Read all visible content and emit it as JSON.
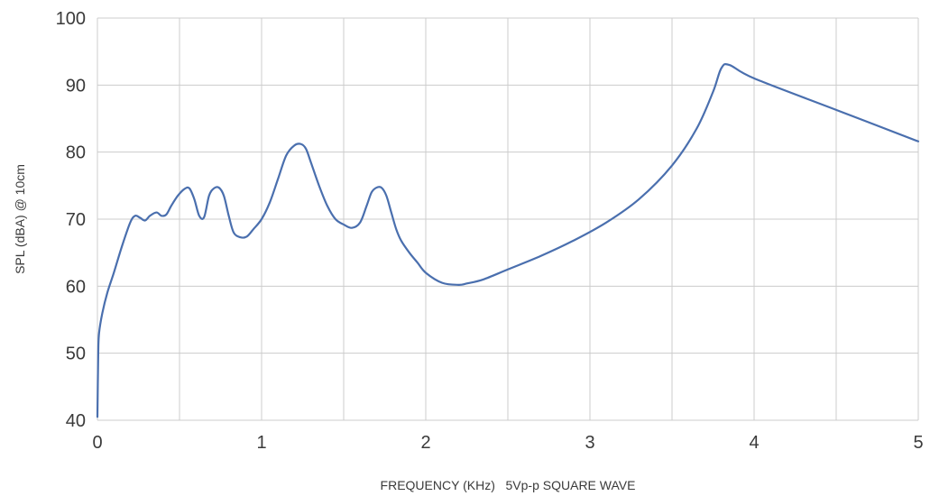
{
  "chart_data": {
    "type": "line",
    "title": "",
    "xlabel": "FREQUENCY (KHz)   5Vp-p SQUARE WAVE",
    "ylabel": "SPL (dBA) @ 10cm",
    "xlim": [
      0,
      5
    ],
    "ylim": [
      40,
      100
    ],
    "x_ticks": [
      0,
      1,
      2,
      3,
      4,
      5
    ],
    "y_ticks": [
      40,
      50,
      60,
      70,
      80,
      90,
      100
    ],
    "x_grid_step": 0.5,
    "grid": true,
    "line_color": "#4a6fae",
    "grid_color": "#cccccc",
    "series": [
      {
        "x": [
          0.0,
          0.005,
          0.01,
          0.03,
          0.06,
          0.1,
          0.15,
          0.2,
          0.23,
          0.26,
          0.29,
          0.32,
          0.36,
          0.39,
          0.42,
          0.45,
          0.49,
          0.53,
          0.56,
          0.59,
          0.62,
          0.65,
          0.68,
          0.71,
          0.74,
          0.77,
          0.8,
          0.83,
          0.87,
          0.91,
          0.95,
          1.0,
          1.05,
          1.1,
          1.15,
          1.2,
          1.24,
          1.27,
          1.3,
          1.35,
          1.4,
          1.45,
          1.5,
          1.55,
          1.6,
          1.64,
          1.67,
          1.7,
          1.73,
          1.76,
          1.79,
          1.82,
          1.85,
          1.9,
          1.95,
          2.0,
          2.1,
          2.2,
          2.25,
          2.35,
          2.5,
          2.7,
          2.9,
          3.1,
          3.3,
          3.5,
          3.65,
          3.75,
          3.8,
          3.85,
          4.0,
          4.5,
          5.0
        ],
        "y": [
          40.5,
          50,
          53,
          56,
          59,
          62,
          66,
          69.5,
          70.5,
          70.2,
          69.8,
          70.5,
          71.0,
          70.5,
          70.7,
          72.0,
          73.5,
          74.5,
          74.6,
          73.0,
          70.5,
          70.3,
          73.5,
          74.6,
          74.7,
          73.5,
          70.5,
          68.0,
          67.3,
          67.4,
          68.5,
          70.0,
          72.5,
          76.0,
          79.5,
          81.0,
          81.2,
          80.5,
          78.5,
          75.0,
          72.0,
          70.0,
          69.2,
          68.7,
          69.5,
          72.0,
          74.0,
          74.7,
          74.7,
          73.5,
          71.0,
          68.5,
          66.8,
          65.0,
          63.5,
          62.0,
          60.5,
          60.2,
          60.4,
          61.0,
          62.5,
          64.5,
          66.8,
          69.5,
          73.0,
          78.0,
          83.5,
          89.0,
          92.5,
          93.0,
          91.0,
          86.3,
          81.6
        ]
      }
    ]
  }
}
